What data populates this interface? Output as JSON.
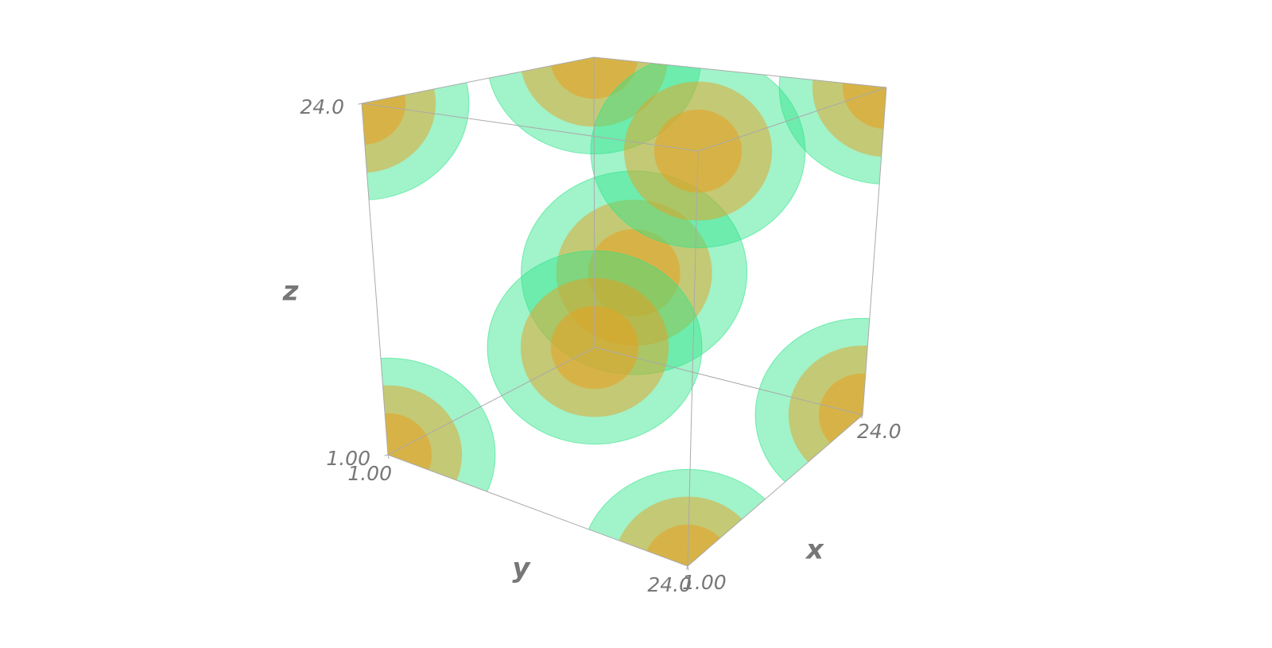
{
  "chart_data": {
    "type": "isosurface",
    "x_label": "x",
    "y_label": "y",
    "z_label": "z",
    "xlim": [
      1,
      24
    ],
    "ylim": [
      1,
      24
    ],
    "zlim": [
      1,
      24
    ],
    "xticks": [
      {
        "value": 1,
        "label": "1.00"
      },
      {
        "value": 24,
        "label": "24.0"
      }
    ],
    "yticks": [
      {
        "value": 1,
        "label": "1.00"
      },
      {
        "value": 24,
        "label": "24.0"
      }
    ],
    "zticks": [
      {
        "value": 1,
        "label": "1.00"
      },
      {
        "value": 24,
        "label": "24.0"
      }
    ],
    "colors": [
      "#2ee58a",
      "#e8a020"
    ]
  }
}
